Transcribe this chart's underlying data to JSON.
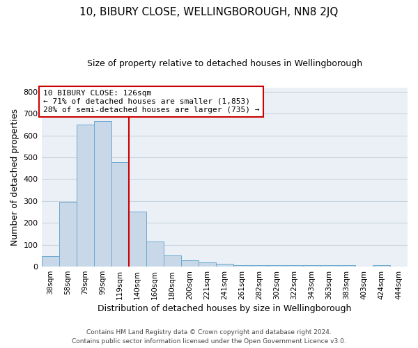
{
  "title": "10, BIBURY CLOSE, WELLINGBOROUGH, NN8 2JQ",
  "subtitle": "Size of property relative to detached houses in Wellingborough",
  "xlabel": "Distribution of detached houses by size in Wellingborough",
  "ylabel": "Number of detached properties",
  "categories": [
    "38sqm",
    "58sqm",
    "79sqm",
    "99sqm",
    "119sqm",
    "140sqm",
    "160sqm",
    "180sqm",
    "200sqm",
    "221sqm",
    "241sqm",
    "261sqm",
    "282sqm",
    "302sqm",
    "322sqm",
    "343sqm",
    "363sqm",
    "383sqm",
    "403sqm",
    "424sqm",
    "444sqm"
  ],
  "values": [
    48,
    295,
    650,
    665,
    478,
    252,
    115,
    50,
    28,
    18,
    12,
    5,
    5,
    5,
    5,
    5,
    5,
    5,
    0,
    8,
    0
  ],
  "bar_color": "#c8d8e8",
  "bar_edge_color": "#6aaad0",
  "vline_x": 4.5,
  "vline_color": "#cc0000",
  "annotation_line1": "10 BIBURY CLOSE: 126sqm",
  "annotation_line2": "← 71% of detached houses are smaller (1,853)",
  "annotation_line3": "28% of semi-detached houses are larger (735) →",
  "annotation_box_fc": "#ffffff",
  "annotation_box_ec": "#cc0000",
  "ylim": [
    0,
    820
  ],
  "yticks": [
    0,
    100,
    200,
    300,
    400,
    500,
    600,
    700,
    800
  ],
  "grid_color": "#c8d4de",
  "bg_color": "#eaf0f6",
  "footer": "Contains HM Land Registry data © Crown copyright and database right 2024.\nContains public sector information licensed under the Open Government Licence v3.0.",
  "title_fontsize": 11,
  "subtitle_fontsize": 9,
  "axis_label_fontsize": 9,
  "tick_fontsize": 8,
  "xtick_fontsize": 7.5,
  "footer_fontsize": 6.5
}
